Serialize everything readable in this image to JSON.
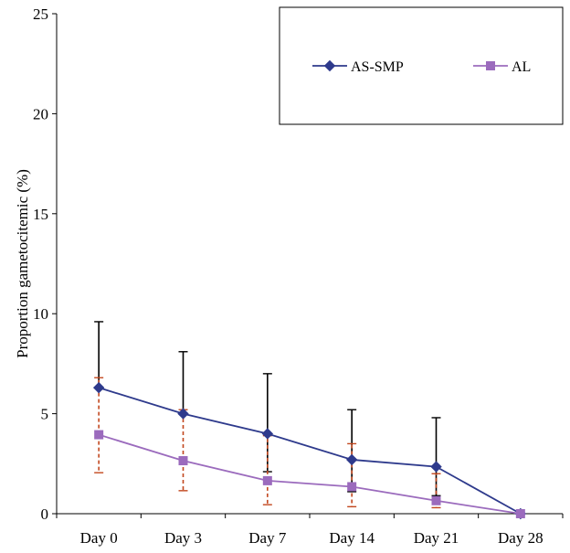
{
  "chart_data": {
    "type": "line",
    "title": "",
    "xlabel": "",
    "ylabel": "Proportion gametocitemic (%)",
    "categories": [
      "Day 0",
      "Day 3",
      "Day 7",
      "Day 14",
      "Day 21",
      "Day 28"
    ],
    "ylim": [
      0,
      25
    ],
    "yticks": [
      0,
      5,
      10,
      15,
      20,
      25
    ],
    "grid": false,
    "legend": "top-right",
    "series": [
      {
        "name": "AS-SMP",
        "color": "#2e3a8c",
        "marker": "diamond",
        "values": [
          6.3,
          5.0,
          4.0,
          2.7,
          2.35,
          0.0
        ],
        "error_upper": [
          9.6,
          8.1,
          7.0,
          5.2,
          4.8,
          null
        ],
        "error_lower": [
          null,
          null,
          2.1,
          1.1,
          0.9,
          null
        ],
        "error_style": "solid",
        "error_color": "#000000"
      },
      {
        "name": "AL",
        "color": "#9b6bbd",
        "marker": "square",
        "values": [
          3.95,
          2.65,
          1.65,
          1.35,
          0.65,
          0.0
        ],
        "error_upper": [
          6.8,
          5.2,
          3.9,
          3.5,
          2.0,
          null
        ],
        "error_lower": [
          2.05,
          1.15,
          0.45,
          0.35,
          0.3,
          null
        ],
        "error_style": "dashed",
        "error_color": "#c2471e"
      }
    ]
  }
}
